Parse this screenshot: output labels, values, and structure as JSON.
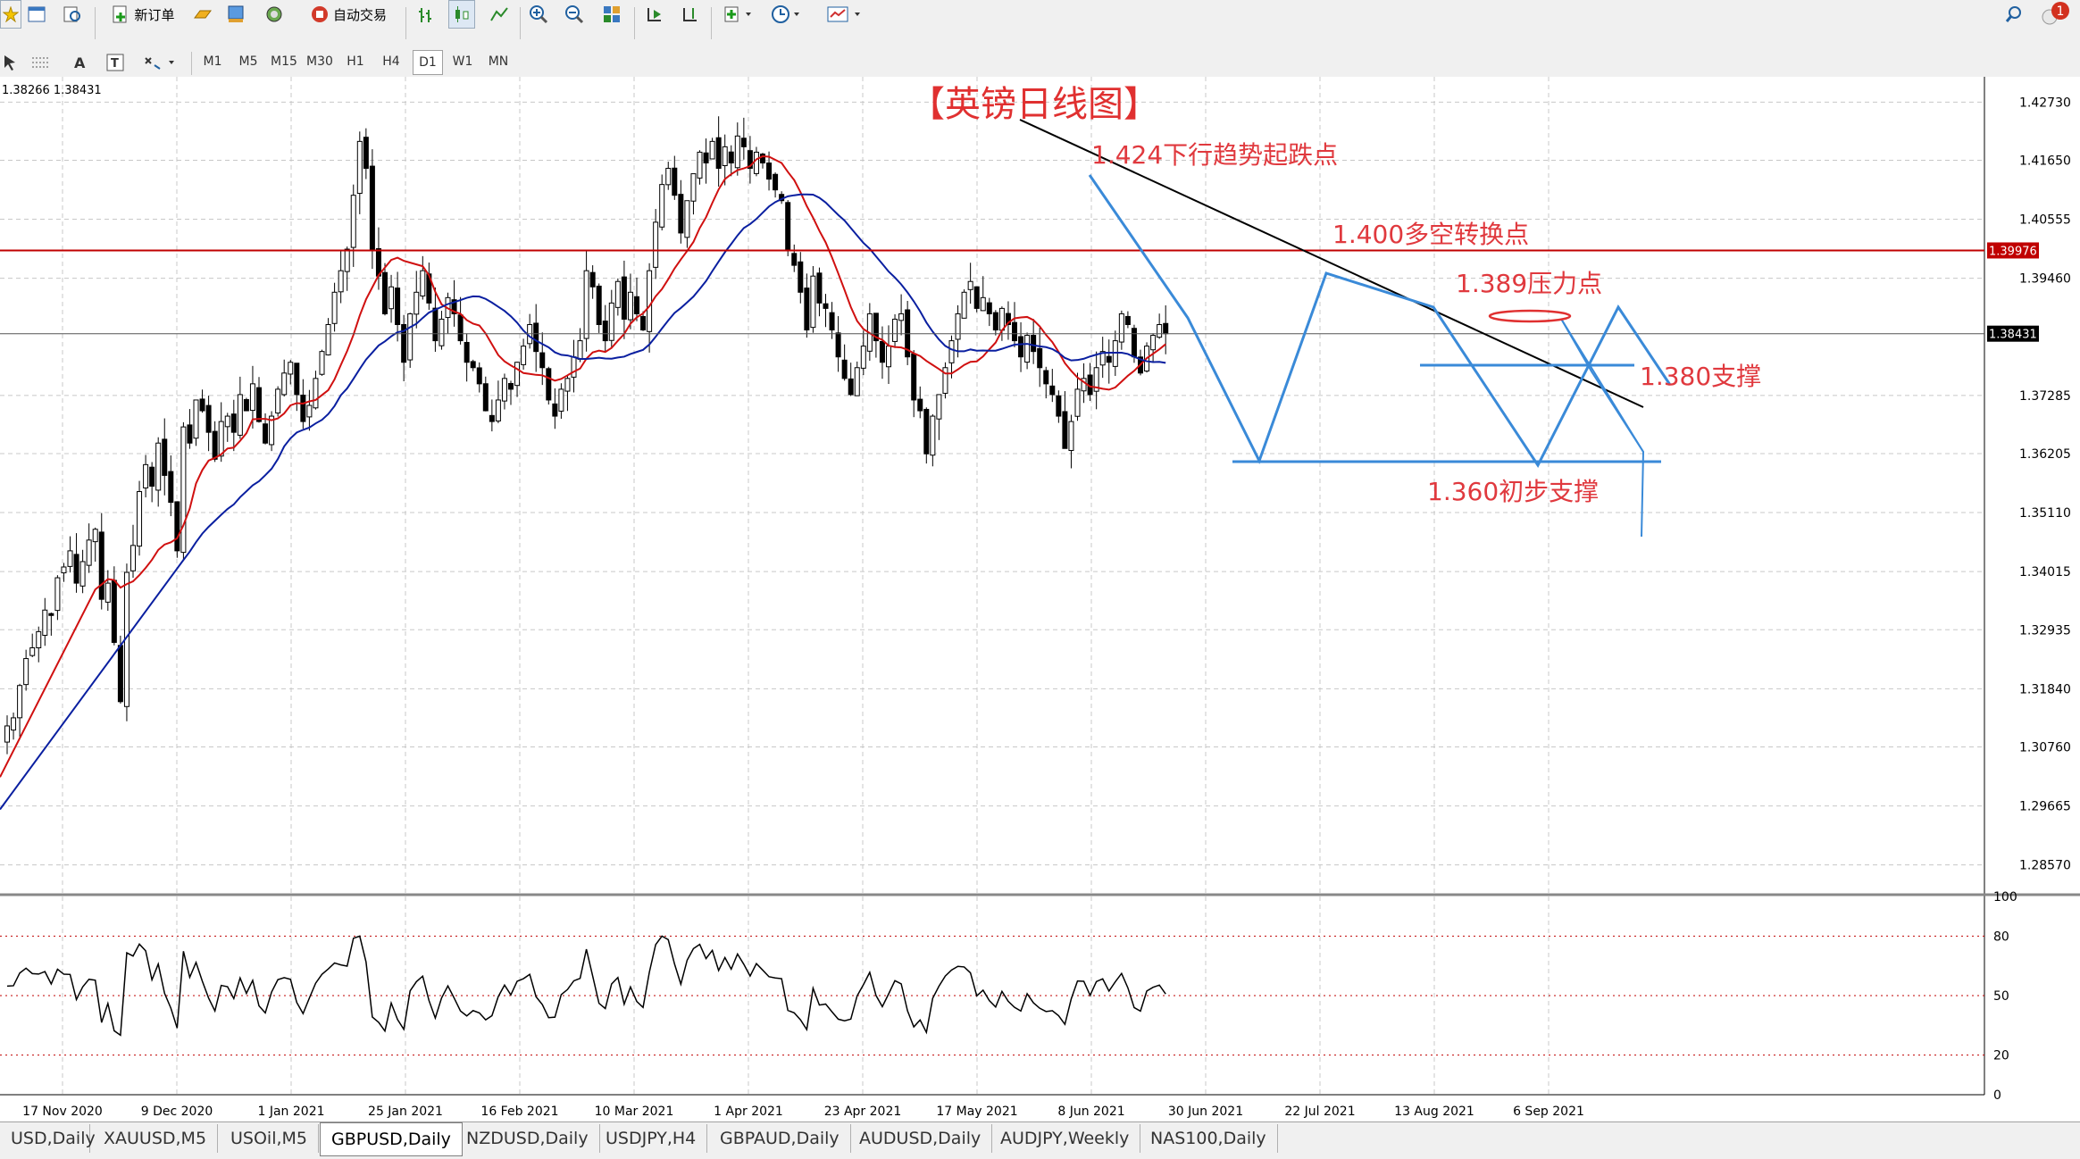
{
  "toolbar": {
    "new_order_label": "新订单",
    "auto_trade_label": "自动交易",
    "notification_count": "1",
    "timeframes": [
      "M1",
      "M5",
      "M15",
      "M30",
      "H1",
      "H4",
      "D1",
      "W1",
      "MN"
    ],
    "active_timeframe": "D1"
  },
  "chart": {
    "ohlc_header": "1.38266 1.38431",
    "title": "【英镑日线图】",
    "current_price_label": "1.38431",
    "hline_price_label": "1.39976",
    "annotations": {
      "a1": "1.424下行趋势起跌点",
      "a2": "1.400多空转换点",
      "a3": "1.389压力点",
      "a4": "1.380支撑",
      "a5": "1.360初步支撑"
    },
    "price_axis": [
      "1.42730",
      "1.41650",
      "1.40555",
      "1.39460",
      "1.38431",
      "1.37285",
      "1.36205",
      "1.35110",
      "1.34015",
      "1.32935",
      "1.31840",
      "1.30760",
      "1.29665",
      "1.28570"
    ],
    "osc_axis": [
      "100",
      "80",
      "50",
      "20",
      "0"
    ],
    "date_axis": [
      "17 Nov 2020",
      "9 Dec 2020",
      "1 Jan 2021",
      "25 Jan 2021",
      "16 Feb 2021",
      "10 Mar 2021",
      "1 Apr 2021",
      "23 Apr 2021",
      "17 May 2021",
      "8 Jun 2021",
      "30 Jun 2021",
      "22 Jul 2021",
      "13 Aug 2021",
      "6 Sep 2021"
    ]
  },
  "chart_data": {
    "type": "candlestick",
    "symbol": "GBPUSD",
    "timeframe": "Daily",
    "price_range": [
      1.2805,
      1.431
    ],
    "hline": 1.39976,
    "current": 1.38431,
    "closes": [
      1.3115,
      1.313,
      1.319,
      1.324,
      1.326,
      1.329,
      1.333,
      1.332,
      1.339,
      1.341,
      1.344,
      1.338,
      1.342,
      1.346,
      1.348,
      1.335,
      1.338,
      1.327,
      1.316,
      1.34,
      1.345,
      1.355,
      1.36,
      1.356,
      1.364,
      1.358,
      1.353,
      1.344,
      1.367,
      1.364,
      1.372,
      1.37,
      1.366,
      1.361,
      1.368,
      1.369,
      1.366,
      1.373,
      1.37,
      1.375,
      1.368,
      1.364,
      1.369,
      1.374,
      1.377,
      1.379,
      1.373,
      1.368,
      1.371,
      1.376,
      1.381,
      1.386,
      1.392,
      1.396,
      1.4,
      1.41,
      1.42,
      1.415,
      1.4,
      1.395,
      1.388,
      1.393,
      1.386,
      1.379,
      1.388,
      1.392,
      1.396,
      1.39,
      1.383,
      1.387,
      1.391,
      1.388,
      1.383,
      1.379,
      1.378,
      1.375,
      1.37,
      1.368,
      1.372,
      1.376,
      1.374,
      1.379,
      1.382,
      1.386,
      1.381,
      1.378,
      1.372,
      1.369,
      1.374,
      1.376,
      1.38,
      1.383,
      1.396,
      1.393,
      1.386,
      1.383,
      1.39,
      1.394,
      1.387,
      1.392,
      1.388,
      1.385,
      1.396,
      1.405,
      1.412,
      1.415,
      1.41,
      1.403,
      1.409,
      1.414,
      1.418,
      1.416,
      1.42,
      1.415,
      1.419,
      1.416,
      1.421,
      1.419,
      1.415,
      1.418,
      1.416,
      1.413,
      1.411,
      1.409,
      1.4,
      1.397,
      1.392,
      1.385,
      1.395,
      1.39,
      1.389,
      1.385,
      1.38,
      1.376,
      1.373,
      1.378,
      1.382,
      1.388,
      1.383,
      1.379,
      1.382,
      1.387,
      1.388,
      1.38,
      1.372,
      1.37,
      1.362,
      1.369,
      1.373,
      1.378,
      1.383,
      1.388,
      1.392,
      1.394,
      1.389,
      1.391,
      1.388,
      1.385,
      1.389,
      1.386,
      1.383,
      1.38,
      1.384,
      1.381,
      1.378,
      1.375,
      1.373,
      1.369,
      1.363,
      1.368,
      1.374,
      1.376,
      1.373,
      1.378,
      1.381,
      1.379,
      1.383,
      1.388,
      1.386,
      1.38,
      1.377,
      1.382,
      1.384,
      1.386,
      1.3843
    ]
  }
}
